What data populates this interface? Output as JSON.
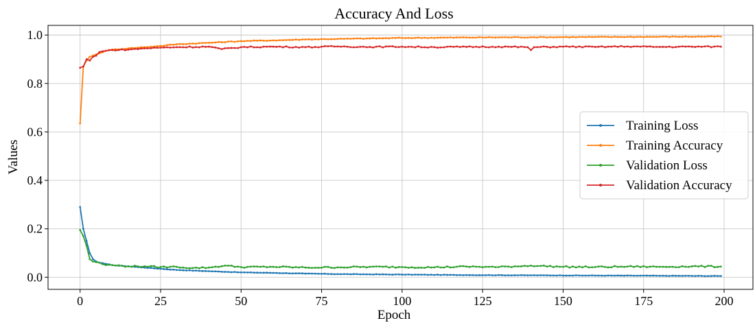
{
  "chart_data": {
    "type": "line",
    "title": "Accuracy And Loss",
    "xlabel": "Epoch",
    "ylabel": "Values",
    "xlim": [
      -9.95,
      208.95
    ],
    "ylim": [
      -0.05,
      1.04
    ],
    "xticks": [
      0,
      25,
      50,
      75,
      100,
      125,
      150,
      175,
      200
    ],
    "yticks": [
      0.0,
      0.2,
      0.4,
      0.6,
      0.8,
      1.0
    ],
    "xtick_labels": [
      "0",
      "25",
      "50",
      "75",
      "100",
      "125",
      "150",
      "175",
      "200"
    ],
    "ytick_labels": [
      "0.0",
      "0.2",
      "0.4",
      "0.6",
      "0.8",
      "1.0"
    ],
    "grid": true,
    "legend_position": "center-right",
    "series": [
      {
        "name": "Training Loss",
        "color": "#1f77b4",
        "points": [
          [
            0,
            0.29
          ],
          [
            1,
            0.2
          ],
          [
            2,
            0.15
          ],
          [
            3,
            0.1
          ],
          [
            4,
            0.075
          ],
          [
            5,
            0.065
          ],
          [
            6,
            0.06
          ],
          [
            8,
            0.055
          ],
          [
            10,
            0.05
          ],
          [
            15,
            0.045
          ],
          [
            20,
            0.04
          ],
          [
            25,
            0.035
          ],
          [
            30,
            0.03
          ],
          [
            40,
            0.025
          ],
          [
            50,
            0.02
          ],
          [
            60,
            0.018
          ],
          [
            70,
            0.015
          ],
          [
            80,
            0.013
          ],
          [
            90,
            0.012
          ],
          [
            100,
            0.011
          ],
          [
            120,
            0.009
          ],
          [
            140,
            0.008
          ],
          [
            160,
            0.007
          ],
          [
            180,
            0.006
          ],
          [
            199,
            0.005
          ]
        ]
      },
      {
        "name": "Training Accuracy",
        "color": "#ff7f0e",
        "points": [
          [
            0,
            0.635
          ],
          [
            1,
            0.87
          ],
          [
            2,
            0.895
          ],
          [
            3,
            0.91
          ],
          [
            4,
            0.915
          ],
          [
            6,
            0.925
          ],
          [
            8,
            0.935
          ],
          [
            10,
            0.94
          ],
          [
            15,
            0.945
          ],
          [
            20,
            0.95
          ],
          [
            25,
            0.955
          ],
          [
            30,
            0.962
          ],
          [
            40,
            0.968
          ],
          [
            50,
            0.975
          ],
          [
            60,
            0.978
          ],
          [
            70,
            0.982
          ],
          [
            80,
            0.984
          ],
          [
            90,
            0.986
          ],
          [
            100,
            0.988
          ],
          [
            120,
            0.99
          ],
          [
            140,
            0.991
          ],
          [
            160,
            0.992
          ],
          [
            180,
            0.993
          ],
          [
            199,
            0.994
          ]
        ]
      },
      {
        "name": "Validation Loss",
        "color": "#2ca02c",
        "points": [
          [
            0,
            0.195
          ],
          [
            1,
            0.17
          ],
          [
            2,
            0.13
          ],
          [
            3,
            0.075
          ],
          [
            4,
            0.065
          ],
          [
            6,
            0.06
          ],
          [
            8,
            0.05
          ],
          [
            10,
            0.05
          ],
          [
            15,
            0.045
          ],
          [
            20,
            0.045
          ],
          [
            25,
            0.042
          ],
          [
            30,
            0.043
          ],
          [
            35,
            0.038
          ],
          [
            40,
            0.04
          ],
          [
            45,
            0.048
          ],
          [
            50,
            0.042
          ],
          [
            60,
            0.043
          ],
          [
            70,
            0.04
          ],
          [
            80,
            0.041
          ],
          [
            90,
            0.043
          ],
          [
            100,
            0.042
          ],
          [
            110,
            0.041
          ],
          [
            120,
            0.044
          ],
          [
            130,
            0.042
          ],
          [
            140,
            0.048
          ],
          [
            150,
            0.043
          ],
          [
            160,
            0.042
          ],
          [
            170,
            0.044
          ],
          [
            180,
            0.043
          ],
          [
            190,
            0.045
          ],
          [
            199,
            0.044
          ]
        ]
      },
      {
        "name": "Validation Accuracy",
        "color": "#d62728",
        "points": [
          [
            0,
            0.865
          ],
          [
            1,
            0.87
          ],
          [
            2,
            0.9
          ],
          [
            3,
            0.895
          ],
          [
            4,
            0.91
          ],
          [
            5,
            0.915
          ],
          [
            6,
            0.93
          ],
          [
            8,
            0.935
          ],
          [
            10,
            0.938
          ],
          [
            15,
            0.94
          ],
          [
            20,
            0.945
          ],
          [
            25,
            0.948
          ],
          [
            30,
            0.95
          ],
          [
            40,
            0.952
          ],
          [
            44,
            0.942
          ],
          [
            50,
            0.95
          ],
          [
            60,
            0.952
          ],
          [
            70,
            0.95
          ],
          [
            80,
            0.953
          ],
          [
            90,
            0.951
          ],
          [
            100,
            0.952
          ],
          [
            110,
            0.95
          ],
          [
            120,
            0.951
          ],
          [
            130,
            0.952
          ],
          [
            139,
            0.95
          ],
          [
            140,
            0.938
          ],
          [
            141,
            0.95
          ],
          [
            150,
            0.952
          ],
          [
            160,
            0.951
          ],
          [
            170,
            0.953
          ],
          [
            180,
            0.951
          ],
          [
            190,
            0.952
          ],
          [
            199,
            0.952
          ]
        ]
      }
    ]
  }
}
